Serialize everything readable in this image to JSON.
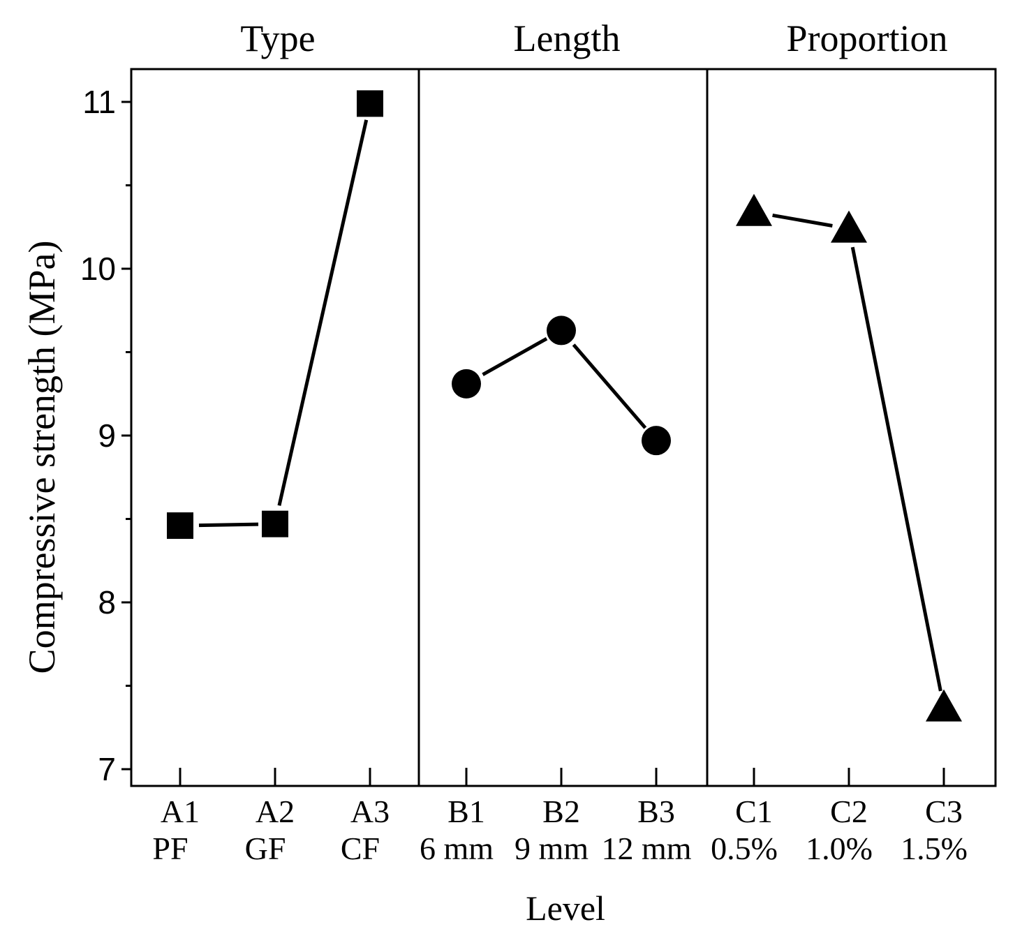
{
  "colors": {
    "ink": "#000000",
    "background": "#ffffff"
  },
  "chart_data": {
    "type": "line",
    "ylabel": "Compressive strength (MPa)",
    "xlabel": "Level",
    "ylim": [
      6.8,
      11.1
    ],
    "yticks": [
      7,
      8,
      9,
      10,
      11
    ],
    "ytick_labels": [
      "7",
      "8",
      "9",
      "10",
      "11"
    ],
    "yminor_ticks": [
      7.5,
      8.5,
      9.5,
      10.5
    ],
    "grid": false,
    "panels": [
      {
        "title": "Type",
        "marker": "square",
        "categories": [
          "A1",
          "A2",
          "A3"
        ],
        "sublabels": [
          "PF",
          "GF",
          "CF"
        ],
        "values": [
          8.46,
          8.47,
          10.99
        ]
      },
      {
        "title": "Length",
        "marker": "circle",
        "categories": [
          "B1",
          "B2",
          "B3"
        ],
        "sublabels": [
          "6 mm",
          "9 mm",
          "12 mm"
        ],
        "values": [
          9.31,
          9.63,
          8.97
        ]
      },
      {
        "title": "Proportion",
        "marker": "triangle",
        "categories": [
          "C1",
          "C2",
          "C3"
        ],
        "sublabels": [
          "0.5%",
          "1.0%",
          "1.5%"
        ],
        "values": [
          10.34,
          10.24,
          7.37
        ]
      }
    ]
  }
}
